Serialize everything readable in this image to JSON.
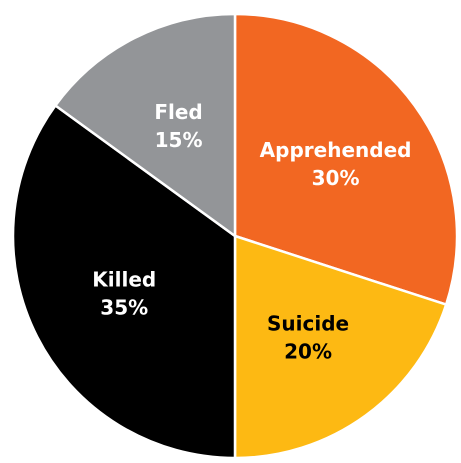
{
  "chart_data": {
    "type": "pie",
    "title": "",
    "start": "12 o'clock",
    "direction": "clockwise",
    "slices": [
      {
        "label": "Apprehended",
        "value": 30,
        "value_label": "30%",
        "color": "#F26722",
        "text_color": "#ffffff"
      },
      {
        "label": "Suicide",
        "value": 20,
        "value_label": "20%",
        "color": "#FDB913",
        "text_color": "#000000"
      },
      {
        "label": "Killed",
        "value": 35,
        "value_label": "35%",
        "color": "#000000",
        "text_color": "#ffffff"
      },
      {
        "label": "Fled",
        "value": 15,
        "value_label": "15%",
        "color": "#939598",
        "text_color": "#ffffff"
      }
    ]
  }
}
